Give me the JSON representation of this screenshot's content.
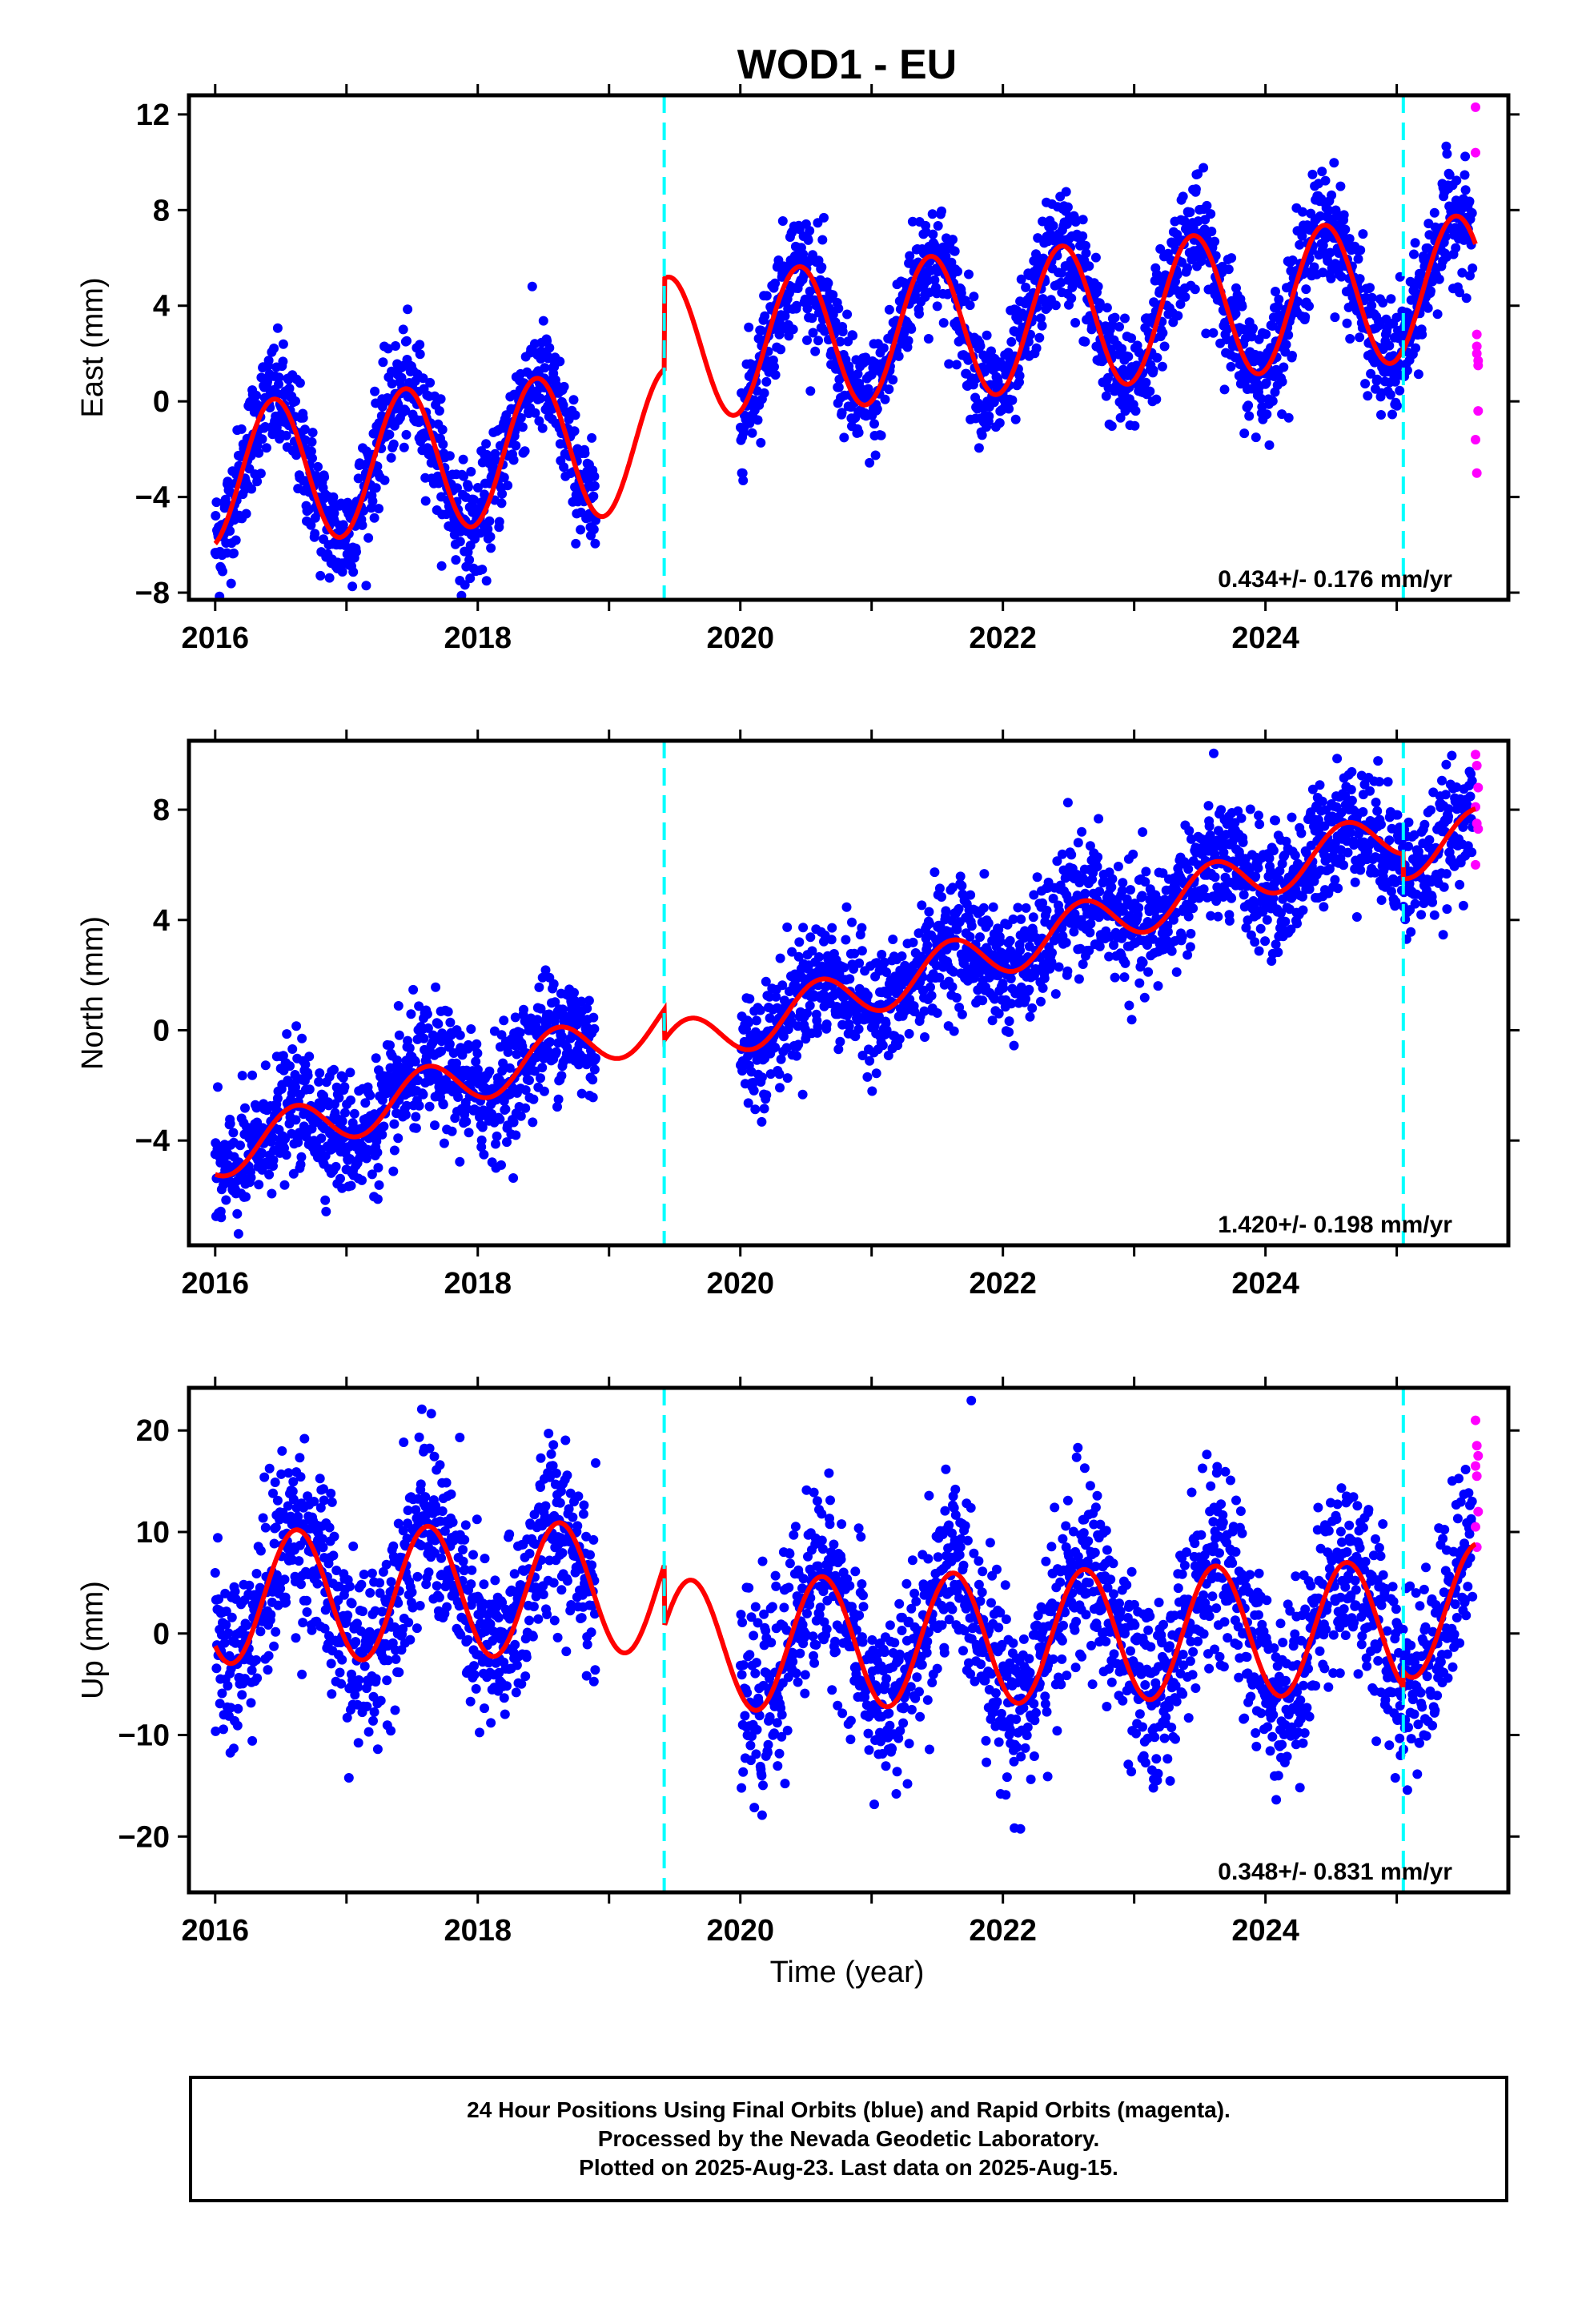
{
  "title": "WOD1 - EU",
  "xlabel": "Time (year)",
  "footer": {
    "line1": "24 Hour Positions Using Final Orbits (blue) and Rapid Orbits (magenta).",
    "line2": "Processed by the Nevada Geodetic Laboratory.",
    "line3": "Plotted on 2025-Aug-23. Last data on 2025-Aug-15."
  },
  "colors": {
    "final_points": "#0000ff",
    "rapid_points": "#ff00ff",
    "model": "#ff0000",
    "event_lines": "#00ffff"
  },
  "chart_data": [
    {
      "type": "scatter",
      "panel": "east",
      "ylabel": "East (mm)",
      "xlim": [
        2015.8,
        2025.85
      ],
      "ylim": [
        -8.3,
        12.8
      ],
      "xticks": [
        2016,
        2018,
        2020,
        2022,
        2024
      ],
      "xtick_labels": [
        "2016",
        "2018",
        "2020",
        "2022",
        "2024"
      ],
      "yticks": [
        -8,
        -4,
        0,
        4,
        8,
        12
      ],
      "ytick_labels": [
        "−8",
        "−4",
        "0",
        "4",
        "8",
        "12"
      ],
      "event_lines_x": [
        2019.42,
        2025.05
      ],
      "rate_text": "0.434+/- 0.176 mm/yr",
      "model": {
        "trend": 0.434,
        "amplitude": 3.0,
        "peak_phase": 0.45,
        "segments": [
          {
            "start": 2016.0,
            "end": 2019.42,
            "offset": -3.1
          },
          {
            "start": 2019.42,
            "end": 2025.05,
            "offset": 0.7
          },
          {
            "start": 2025.05,
            "end": 2025.6,
            "offset": 0.65
          }
        ],
        "gap": {
          "start": 2018.9,
          "end": 2020.0
        },
        "noise": 1.2
      },
      "rapid_points": {
        "x": [
          2025.6,
          2025.6,
          2025.61,
          2025.61,
          2025.62,
          2025.62,
          2025.6,
          2025.61,
          2025.62,
          2025.61
        ],
        "y": [
          12.3,
          10.4,
          2.8,
          2.0,
          1.7,
          -0.4,
          -1.6,
          -3.0,
          1.5,
          2.3
        ]
      }
    },
    {
      "type": "scatter",
      "panel": "north",
      "ylabel": "North (mm)",
      "xlim": [
        2015.8,
        2025.85
      ],
      "ylim": [
        -7.8,
        10.5
      ],
      "xticks": [
        2016,
        2018,
        2020,
        2022,
        2024
      ],
      "xtick_labels": [
        "2016",
        "2018",
        "2020",
        "2022",
        "2024"
      ],
      "yticks": [
        -4,
        0,
        4,
        8
      ],
      "ytick_labels": [
        "−4",
        "0",
        "4",
        "8"
      ],
      "event_lines_x": [
        2019.42,
        2025.05
      ],
      "rate_text": "1.420+/- 0.198 mm/yr",
      "model": {
        "trend": 1.42,
        "amplitude": 0.9,
        "peak_phase": 0.6,
        "segments": [
          {
            "start": 2016.0,
            "end": 2019.42,
            "offset": -4.5
          },
          {
            "start": 2019.42,
            "end": 2025.05,
            "offset": -5.6
          },
          {
            "start": 2025.05,
            "end": 2025.6,
            "offset": -6.5
          }
        ],
        "gap": {
          "start": 2018.9,
          "end": 2020.0
        },
        "noise": 1.1
      },
      "rapid_points": {
        "x": [
          2025.6,
          2025.61,
          2025.62,
          2025.6,
          2025.61,
          2025.62,
          2025.6
        ],
        "y": [
          10.0,
          9.6,
          8.8,
          8.1,
          7.5,
          7.3,
          6.0
        ]
      }
    },
    {
      "type": "scatter",
      "panel": "up",
      "ylabel": "Up (mm)",
      "xlim": [
        2015.8,
        2025.85
      ],
      "ylim": [
        -25.5,
        24.2
      ],
      "xticks": [
        2016,
        2018,
        2020,
        2022,
        2024
      ],
      "xtick_labels": [
        "2016",
        "2018",
        "2020",
        "2022",
        "2024"
      ],
      "yticks": [
        -20,
        -10,
        0,
        10,
        20
      ],
      "ytick_labels": [
        "−20",
        "−10",
        "0",
        "10",
        "20"
      ],
      "event_lines_x": [
        2019.42,
        2025.05
      ],
      "rate_text": "0.348+/- 0.831 mm/yr",
      "model": {
        "trend": 0.348,
        "amplitude": 6.5,
        "peak_phase": 0.62,
        "segments": [
          {
            "start": 2016.0,
            "end": 2019.42,
            "offset": 3.5
          },
          {
            "start": 2019.42,
            "end": 2025.05,
            "offset": -2.5
          },
          {
            "start": 2025.05,
            "end": 2025.6,
            "offset": -1.0
          }
        ],
        "gap": {
          "start": 2018.9,
          "end": 2020.0
        },
        "noise": 4.5
      },
      "rapid_points": {
        "x": [
          2025.6,
          2025.61,
          2025.62,
          2025.6,
          2025.61,
          2025.62,
          2025.6,
          2025.61
        ],
        "y": [
          21.0,
          18.5,
          17.5,
          16.5,
          15.5,
          12.0,
          10.5,
          8.5
        ]
      }
    }
  ]
}
